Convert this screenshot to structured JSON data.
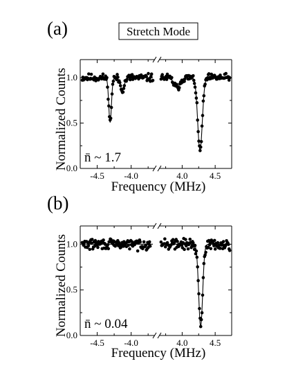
{
  "figure": {
    "title_box": "Stretch Mode"
  },
  "chart_data": [
    {
      "type": "scatter",
      "panel_label": "(a)",
      "annotation": "n̄ ~ 1.7",
      "xlabel": "Frequency (MHz)",
      "ylabel": "Normalized Counts",
      "broken_x_axis": true,
      "left_segment": {
        "xlim": [
          -4.75,
          -3.65
        ],
        "ticks": [
          -4.5,
          -4.0
        ],
        "tick_labels": [
          "-4.5",
          "-4.0"
        ]
      },
      "right_segment": {
        "xlim": [
          3.65,
          4.75
        ],
        "ticks": [
          4.0,
          4.5
        ],
        "tick_labels": [
          "4.0",
          "4.5"
        ]
      },
      "ylim": [
        0.0,
        1.2
      ],
      "yticks": [
        0.0,
        0.5,
        1.0
      ],
      "ytick_labels": [
        "0.0",
        "0.5",
        "1.0"
      ],
      "series": [
        {
          "role": "data_points",
          "left": {
            "baseline": 1.0,
            "dips": [
              {
                "center": -4.31,
                "width": 0.02,
                "depth": 0.49
              },
              {
                "center": -4.13,
                "width": 0.03,
                "depth": 0.13
              }
            ],
            "x_range": [
              -4.72,
              -3.68
            ],
            "noise": 0.03
          },
          "right": {
            "baseline": 1.0,
            "dips": [
              {
                "center": 3.92,
                "width": 0.045,
                "depth": 0.11
              },
              {
                "center": 4.27,
                "width": 0.035,
                "depth": 0.8
              }
            ],
            "x_range": [
              3.68,
              4.72
            ],
            "noise": 0.03
          }
        },
        {
          "role": "fit_line",
          "left": {
            "baseline": 1.0,
            "dips": [
              {
                "center": -4.31,
                "width": 0.02,
                "depth": 0.49
              },
              {
                "center": -4.13,
                "width": 0.03,
                "depth": 0.13
              }
            ]
          },
          "right": {
            "baseline": 1.0,
            "dips": [
              {
                "center": 3.92,
                "width": 0.045,
                "depth": 0.11
              },
              {
                "center": 4.27,
                "width": 0.035,
                "depth": 0.8
              }
            ]
          }
        }
      ]
    },
    {
      "type": "scatter",
      "panel_label": "(b)",
      "annotation": "n̄ ~ 0.04",
      "xlabel": "Frequency (MHz)",
      "ylabel": "Normalized Counts",
      "broken_x_axis": true,
      "left_segment": {
        "xlim": [
          -4.75,
          -3.65
        ],
        "ticks": [
          -4.5,
          -4.0
        ],
        "tick_labels": [
          "-4.5",
          "-4.0"
        ]
      },
      "right_segment": {
        "xlim": [
          3.65,
          4.75
        ],
        "ticks": [
          4.0,
          4.5
        ],
        "tick_labels": [
          "4.0",
          "4.5"
        ]
      },
      "ylim": [
        0.0,
        1.2
      ],
      "yticks": [
        0.0,
        0.5,
        1.0
      ],
      "ytick_labels": [
        "0.0",
        "0.5",
        "1.0"
      ],
      "series": [
        {
          "role": "data_points",
          "left": {
            "baseline": 1.0,
            "dips": [],
            "x_range": [
              -4.72,
              -3.72
            ],
            "noise": 0.04
          },
          "right": {
            "baseline": 1.0,
            "dips": [
              {
                "center": 4.28,
                "width": 0.03,
                "depth": 0.9
              }
            ],
            "x_range": [
              3.68,
              4.72
            ],
            "noise": 0.04
          }
        },
        {
          "role": "fit_line",
          "left": {
            "baseline": 1.0,
            "dips": []
          },
          "right": {
            "baseline": 1.0,
            "dips": [
              {
                "center": 4.28,
                "width": 0.03,
                "depth": 0.9
              }
            ]
          }
        }
      ]
    }
  ]
}
